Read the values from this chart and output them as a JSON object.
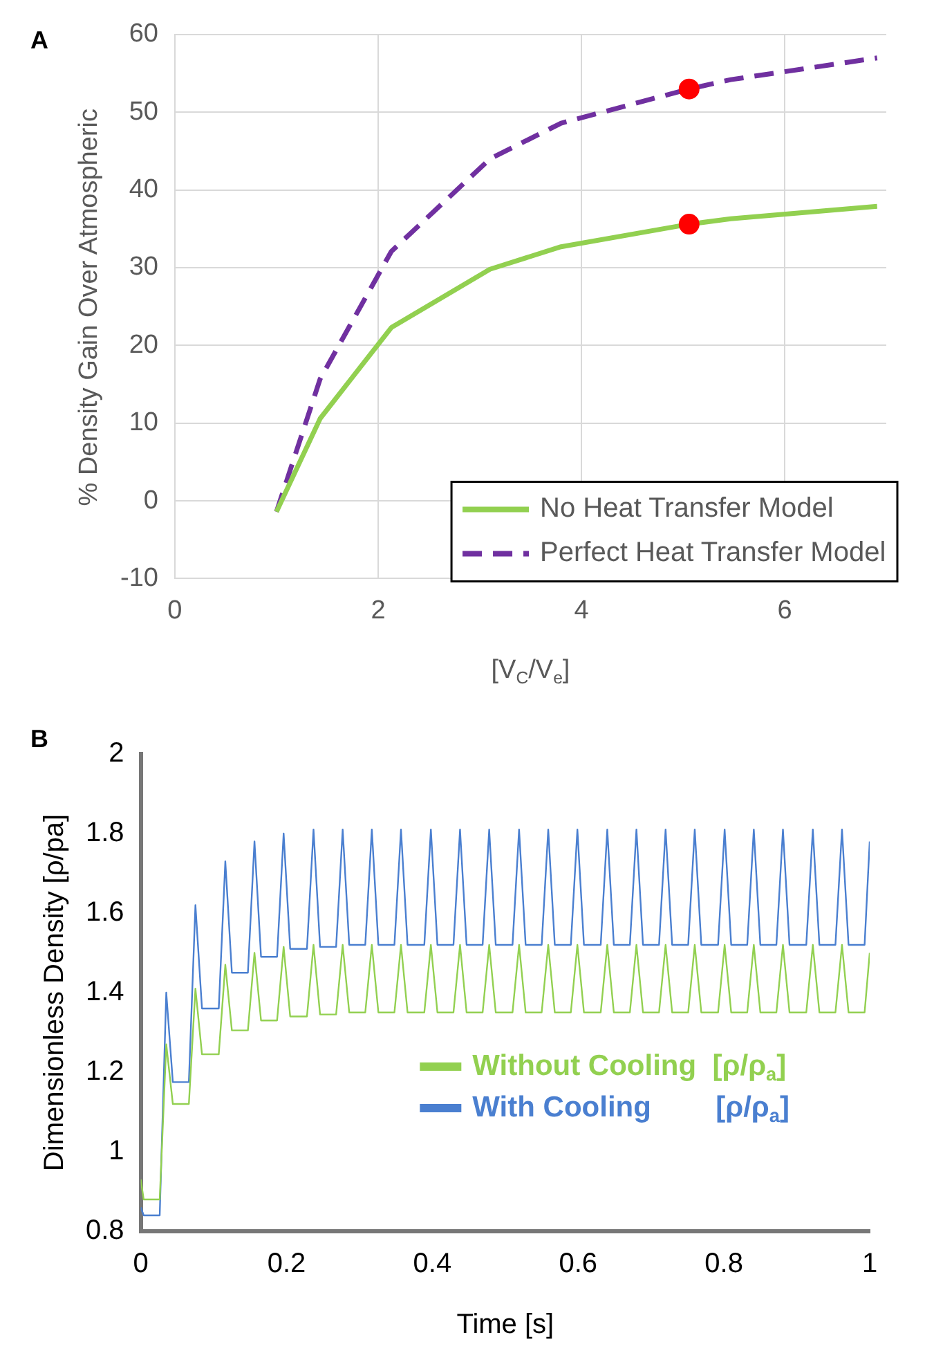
{
  "chart_data": [
    {
      "type": "line",
      "title": "A",
      "xlabel": "[V$_{C}$/V$_{e}$]",
      "ylabel": "% Density Gain Over Atmospheric",
      "x": [
        1.0,
        1.43,
        2.13,
        3.1,
        3.8,
        5.06,
        5.47,
        6.91
      ],
      "series": [
        {
          "name": "No Heat Transfer Model",
          "color": "#92d050",
          "line_style": "solid",
          "values": [
            -1.4,
            10.6,
            22.3,
            29.8,
            32.7,
            35.6,
            36.3,
            37.9
          ]
        },
        {
          "name": "Perfect Heat Transfer Model",
          "color": "#7030a0",
          "line_style": "dashed",
          "values": [
            -1.4,
            15.7,
            32.1,
            44.0,
            48.6,
            53.0,
            54.2,
            57.0
          ]
        },
        {
          "type": "scatter",
          "color": "#ff0000",
          "marker": "circle",
          "x": [
            5.06,
            5.06
          ],
          "values": [
            35.6,
            53.0
          ]
        }
      ],
      "xlim": [
        0,
        7
      ],
      "xticks": [
        0,
        2,
        4,
        6
      ],
      "ylim": [
        -10,
        60
      ],
      "yticks": [
        -10,
        0,
        10,
        20,
        30,
        40,
        50,
        60
      ],
      "grid": true,
      "legend": "bottom right",
      "marker": "none"
    },
    {
      "type": "line",
      "title": "B",
      "xlabel": "Time [s]",
      "ylabel": "Dimensionless Density [ρ/pa]",
      "x": [
        0,
        0.004,
        0.026,
        0.035,
        0.044,
        0.066,
        0.075,
        0.084,
        0.107,
        0.116,
        0.125,
        0.147,
        0.156,
        0.165,
        0.187,
        0.196,
        0.205,
        0.228,
        0.237,
        0.246,
        0.268,
        0.277,
        0.286,
        0.308,
        0.317,
        0.326,
        0.348,
        0.357,
        0.366,
        0.389,
        0.398,
        0.407,
        0.429,
        0.438,
        0.447,
        0.469,
        0.478,
        0.487,
        0.51,
        0.519,
        0.528,
        0.55,
        0.559,
        0.568,
        0.59,
        0.599,
        0.608,
        0.631,
        0.64,
        0.649,
        0.671,
        0.68,
        0.689,
        0.711,
        0.72,
        0.729,
        0.751,
        0.76,
        0.769,
        0.792,
        0.801,
        0.81,
        0.832,
        0.841,
        0.85,
        0.872,
        0.881,
        0.89,
        0.913,
        0.922,
        0.931,
        0.953,
        0.962,
        0.971,
        0.993,
        1.0
      ],
      "series": [
        {
          "name": "Without Cooling  [ρ/ρ$_{a}$]",
          "color": "#92d050",
          "values": [
            0.93,
            0.88,
            0.88,
            1.27,
            1.12,
            1.12,
            1.41,
            1.245,
            1.245,
            1.47,
            1.305,
            1.305,
            1.5,
            1.33,
            1.33,
            1.515,
            1.34,
            1.34,
            1.52,
            1.345,
            1.345,
            1.52,
            1.35,
            1.35,
            1.52,
            1.35,
            1.35,
            1.52,
            1.35,
            1.35,
            1.52,
            1.35,
            1.35,
            1.52,
            1.35,
            1.35,
            1.52,
            1.35,
            1.35,
            1.52,
            1.35,
            1.35,
            1.52,
            1.35,
            1.35,
            1.52,
            1.35,
            1.35,
            1.52,
            1.35,
            1.35,
            1.52,
            1.35,
            1.35,
            1.52,
            1.35,
            1.35,
            1.52,
            1.35,
            1.35,
            1.52,
            1.35,
            1.35,
            1.52,
            1.35,
            1.35,
            1.52,
            1.35,
            1.35,
            1.52,
            1.35,
            1.35,
            1.52,
            1.35,
            1.35,
            1.5
          ]
        },
        {
          "name": "With Cooling        [ρ/ρ$_{a}$]",
          "color": "#4a7fd0",
          "values": [
            0.86,
            0.84,
            0.84,
            1.4,
            1.175,
            1.175,
            1.62,
            1.36,
            1.36,
            1.73,
            1.45,
            1.45,
            1.78,
            1.49,
            1.49,
            1.8,
            1.51,
            1.51,
            1.81,
            1.515,
            1.515,
            1.81,
            1.52,
            1.52,
            1.81,
            1.52,
            1.52,
            1.81,
            1.52,
            1.52,
            1.81,
            1.52,
            1.52,
            1.81,
            1.52,
            1.52,
            1.81,
            1.52,
            1.52,
            1.81,
            1.52,
            1.52,
            1.81,
            1.52,
            1.52,
            1.81,
            1.52,
            1.52,
            1.81,
            1.52,
            1.52,
            1.81,
            1.52,
            1.52,
            1.81,
            1.52,
            1.52,
            1.81,
            1.52,
            1.52,
            1.81,
            1.52,
            1.52,
            1.81,
            1.52,
            1.52,
            1.81,
            1.52,
            1.52,
            1.81,
            1.52,
            1.52,
            1.81,
            1.52,
            1.52,
            1.78
          ]
        }
      ],
      "xlim": [
        0,
        1
      ],
      "xticks": [
        0,
        0.2,
        0.4,
        0.6,
        0.8,
        1
      ],
      "ylim": [
        0.8,
        2
      ],
      "yticks": [
        0.8,
        1,
        1.2,
        1.4,
        1.6,
        1.8,
        2
      ],
      "legend": "bottom right",
      "marker": "none"
    }
  ]
}
